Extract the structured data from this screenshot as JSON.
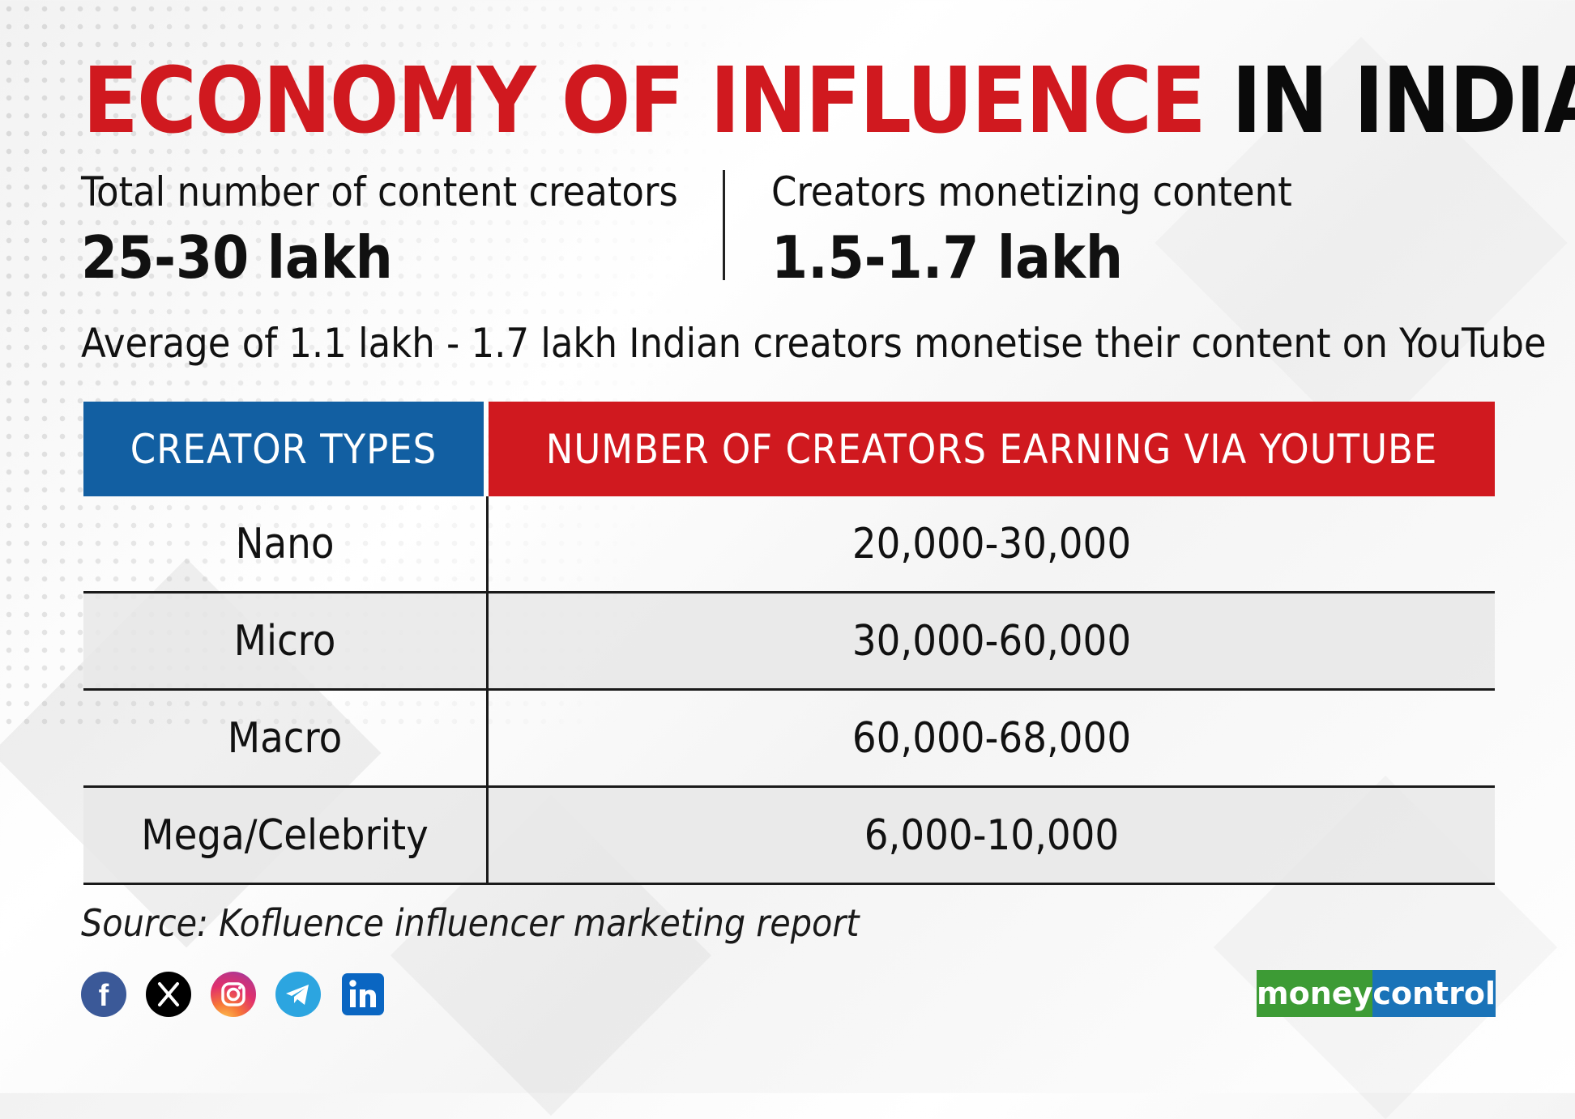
{
  "title": {
    "part1": "ECONOMY OF INFLUENCE",
    "part2": "IN INDIA"
  },
  "stats": [
    {
      "label": "Total number of content creators",
      "value": "25-30 lakh"
    },
    {
      "label": "Creators monetizing content",
      "value": "1.5-1.7 lakh"
    }
  ],
  "average_note": "Average of 1.1 lakh - 1.7 lakh Indian creators monetise their content on YouTube",
  "table": {
    "headers": [
      "CREATOR TYPES",
      "NUMBER OF CREATORS EARNING VIA YOUTUBE"
    ],
    "rows": [
      {
        "type": "Nano",
        "count": "20,000-30,000"
      },
      {
        "type": "Micro",
        "count": "30,000-60,000"
      },
      {
        "type": "Macro",
        "count": "60,000-68,000"
      },
      {
        "type": "Mega/Celebrity",
        "count": "6,000-10,000"
      }
    ]
  },
  "source": "Source: Kofluence influencer marketing report",
  "social_icons": [
    "facebook-icon",
    "x-icon",
    "instagram-icon",
    "telegram-icon",
    "linkedin-icon"
  ],
  "logo": {
    "part1": "money",
    "part2": "control"
  },
  "colors": {
    "accent_red": "#d0191f",
    "header_blue": "#125fa2",
    "logo_green": "#3d9b35",
    "logo_blue": "#1a73b8"
  }
}
